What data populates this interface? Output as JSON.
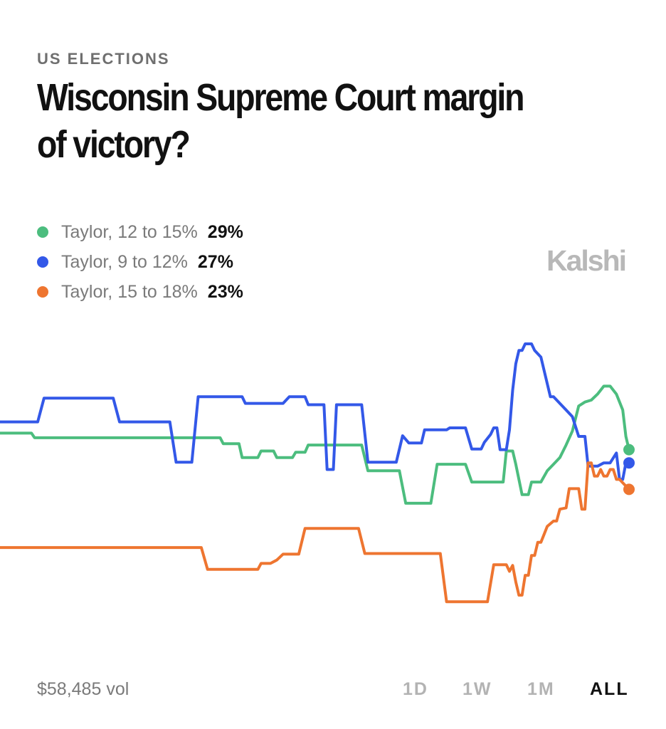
{
  "header": {
    "kicker": "US ELECTIONS",
    "title": "Wisconsin Supreme Court margin of victory?"
  },
  "brand": "Kalshi",
  "legend": [
    {
      "label": "Taylor, 12 to 15%",
      "value": "29%",
      "color": "#4cbd7e"
    },
    {
      "label": "Taylor, 9 to 12%",
      "value": "27%",
      "color": "#3358e8"
    },
    {
      "label": "Taylor, 15 to 18%",
      "value": "23%",
      "color": "#ee7530"
    }
  ],
  "footer": {
    "volume": "$58,485 vol",
    "ranges": [
      "1D",
      "1W",
      "1M",
      "ALL"
    ],
    "active_range": "ALL"
  },
  "chart_data": {
    "type": "line",
    "title": "Wisconsin Supreme Court margin of victory?",
    "xlabel": "",
    "ylabel": "",
    "x_unit": "relative time (0 = start, 100 = latest)",
    "y_unit": "chance (%)",
    "xlim": [
      0,
      100
    ],
    "ylim": [
      0,
      45
    ],
    "grid": false,
    "legend_position": "top-left",
    "series": [
      {
        "name": "Taylor, 12 to 15%",
        "color": "#4cbd7e",
        "latest": "29%",
        "points": [
          [
            0,
            31.5
          ],
          [
            5,
            31.5
          ],
          [
            5.5,
            30.8
          ],
          [
            35,
            30.8
          ],
          [
            35.5,
            29.9
          ],
          [
            38,
            29.9
          ],
          [
            38.5,
            27.8
          ],
          [
            41,
            27.8
          ],
          [
            41.5,
            28.8
          ],
          [
            43.5,
            28.8
          ],
          [
            44,
            27.8
          ],
          [
            46.5,
            27.8
          ],
          [
            47,
            28.6
          ],
          [
            48.5,
            28.6
          ],
          [
            49,
            29.7
          ],
          [
            57.5,
            29.7
          ],
          [
            58.5,
            25.8
          ],
          [
            63.5,
            25.8
          ],
          [
            64.5,
            20.9
          ],
          [
            68.5,
            20.9
          ],
          [
            69.5,
            26.8
          ],
          [
            74,
            26.8
          ],
          [
            75,
            24.1
          ],
          [
            80,
            24.1
          ],
          [
            80.5,
            28.8
          ],
          [
            81.5,
            28.8
          ],
          [
            82,
            26.8
          ],
          [
            83,
            22.2
          ],
          [
            84,
            22.2
          ],
          [
            84.5,
            24.1
          ],
          [
            86,
            24.1
          ],
          [
            87,
            25.8
          ],
          [
            88,
            26.8
          ],
          [
            89,
            27.8
          ],
          [
            90,
            29.7
          ],
          [
            91,
            31.8
          ],
          [
            92,
            35.6
          ],
          [
            93,
            36.2
          ],
          [
            94,
            36.5
          ],
          [
            95,
            37.4
          ],
          [
            96,
            38.6
          ],
          [
            97,
            38.6
          ],
          [
            98,
            37.4
          ],
          [
            99,
            35.0
          ],
          [
            99.5,
            31.0
          ],
          [
            100,
            29.0
          ]
        ]
      },
      {
        "name": "Taylor, 9 to 12%",
        "color": "#3358e8",
        "latest": "27%",
        "points": [
          [
            0,
            33.2
          ],
          [
            6,
            33.2
          ],
          [
            7,
            36.8
          ],
          [
            18,
            36.8
          ],
          [
            19,
            33.2
          ],
          [
            27,
            33.2
          ],
          [
            28,
            27.1
          ],
          [
            30.5,
            27.1
          ],
          [
            31.5,
            37.0
          ],
          [
            38.5,
            37.0
          ],
          [
            39,
            36.0
          ],
          [
            45,
            36.0
          ],
          [
            46,
            37.0
          ],
          [
            48.5,
            37.0
          ],
          [
            49,
            35.8
          ],
          [
            51.5,
            35.8
          ],
          [
            52,
            26.0
          ],
          [
            53,
            26.0
          ],
          [
            53.5,
            35.8
          ],
          [
            57.5,
            35.8
          ],
          [
            58.5,
            27.1
          ],
          [
            63,
            27.1
          ],
          [
            64,
            31.1
          ],
          [
            65,
            30.0
          ],
          [
            67,
            30.0
          ],
          [
            67.5,
            32.0
          ],
          [
            71,
            32.0
          ],
          [
            71.5,
            32.3
          ],
          [
            74,
            32.3
          ],
          [
            75,
            29.1
          ],
          [
            76.5,
            29.1
          ],
          [
            77,
            30.1
          ],
          [
            78,
            31.3
          ],
          [
            78.5,
            32.3
          ],
          [
            79,
            32.3
          ],
          [
            79.5,
            29.0
          ],
          [
            80.5,
            29.0
          ],
          [
            81,
            32.0
          ],
          [
            81.5,
            38.0
          ],
          [
            82,
            42.0
          ],
          [
            82.5,
            44.0
          ],
          [
            83,
            44.0
          ],
          [
            83.5,
            45.0
          ],
          [
            84.5,
            45.0
          ],
          [
            85,
            44.0
          ],
          [
            86,
            43.0
          ],
          [
            87.5,
            37.0
          ],
          [
            88,
            37.0
          ],
          [
            89,
            36.0
          ],
          [
            90,
            35.0
          ],
          [
            91,
            34.0
          ],
          [
            92,
            31.0
          ],
          [
            93,
            31.0
          ],
          [
            93.5,
            26.5
          ],
          [
            95,
            26.5
          ],
          [
            96,
            27.0
          ],
          [
            97,
            27.0
          ],
          [
            98,
            28.5
          ],
          [
            98.5,
            24.5
          ],
          [
            99,
            24.5
          ],
          [
            99.5,
            27.0
          ],
          [
            100,
            27.0
          ]
        ]
      },
      {
        "name": "Taylor, 15 to 18%",
        "color": "#ee7530",
        "latest": "23%",
        "points": [
          [
            0,
            14.2
          ],
          [
            32,
            14.2
          ],
          [
            33,
            10.9
          ],
          [
            41,
            10.9
          ],
          [
            41.5,
            11.8
          ],
          [
            43,
            11.8
          ],
          [
            44,
            12.3
          ],
          [
            45,
            13.2
          ],
          [
            47.5,
            13.2
          ],
          [
            48.5,
            17.1
          ],
          [
            57,
            17.1
          ],
          [
            58,
            13.3
          ],
          [
            70,
            13.3
          ],
          [
            71,
            6.0
          ],
          [
            77.5,
            6.0
          ],
          [
            78.5,
            11.6
          ],
          [
            80.5,
            11.6
          ],
          [
            81,
            10.6
          ],
          [
            81.5,
            11.5
          ],
          [
            82,
            9.0
          ],
          [
            82.5,
            7.0
          ],
          [
            83,
            7.0
          ],
          [
            83.5,
            10.0
          ],
          [
            84,
            10.0
          ],
          [
            84.5,
            13.0
          ],
          [
            85,
            13.0
          ],
          [
            85.5,
            15.0
          ],
          [
            86,
            15.0
          ],
          [
            86.5,
            16.2
          ],
          [
            87,
            17.4
          ],
          [
            88,
            18.2
          ],
          [
            88.5,
            18.2
          ],
          [
            89,
            20.0
          ],
          [
            90,
            20.2
          ],
          [
            90.5,
            23.1
          ],
          [
            92,
            23.1
          ],
          [
            92.5,
            20.0
          ],
          [
            93,
            20.0
          ],
          [
            93.5,
            27.0
          ],
          [
            94,
            27.0
          ],
          [
            94.5,
            25.0
          ],
          [
            95,
            25.0
          ],
          [
            95.5,
            26.0
          ],
          [
            96,
            25.0
          ],
          [
            96.5,
            25.0
          ],
          [
            97,
            26.0
          ],
          [
            97.5,
            26.0
          ],
          [
            98,
            24.5
          ],
          [
            98.5,
            24.5
          ],
          [
            99,
            24.0
          ],
          [
            99.5,
            23.5
          ],
          [
            100,
            23.0
          ]
        ]
      }
    ]
  }
}
